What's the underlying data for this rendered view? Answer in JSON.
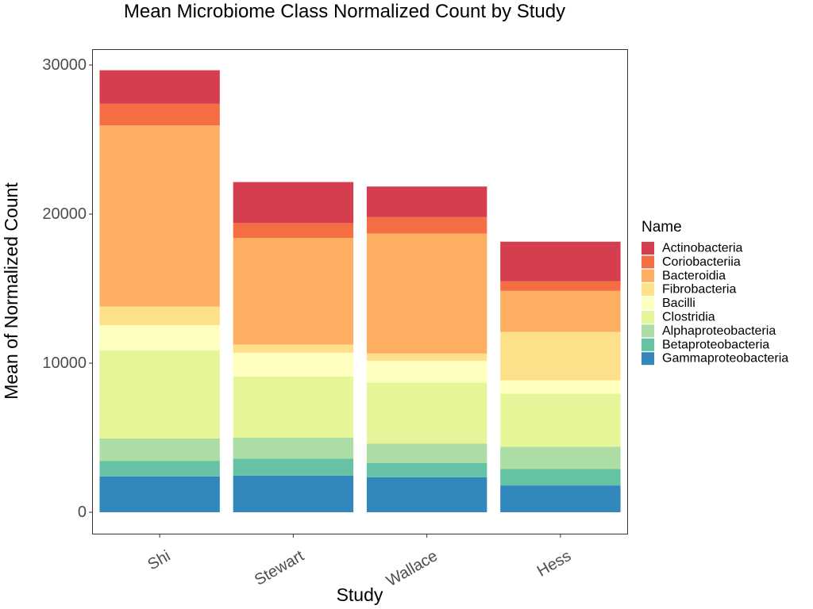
{
  "chart_data": {
    "type": "bar",
    "stacked": true,
    "title": "Mean Microbiome Class Normalized Count by Study",
    "xlabel": "Study",
    "ylabel": "Mean of Normalized Count",
    "categories": [
      "Shi",
      "Stewart",
      "Wallace",
      "Hess"
    ],
    "ylim": [
      0,
      30000
    ],
    "yticks": [
      0,
      10000,
      20000,
      30000
    ],
    "grid": false,
    "legend": {
      "title": "Name",
      "position": "right"
    },
    "series": [
      {
        "name": "Gammaproteobacteria",
        "color": "#3288bd",
        "values": [
          2400,
          2450,
          2350,
          1800
        ]
      },
      {
        "name": "Betaproteobacteria",
        "color": "#66c2a5",
        "values": [
          1050,
          1150,
          950,
          1100
        ]
      },
      {
        "name": "Alphaproteobacteria",
        "color": "#abdda4",
        "values": [
          1500,
          1400,
          1300,
          1500
        ]
      },
      {
        "name": "Clostridia",
        "color": "#e6f598",
        "values": [
          5900,
          4100,
          4100,
          3550
        ]
      },
      {
        "name": "Bacilli",
        "color": "#ffffbf",
        "values": [
          1700,
          1600,
          1450,
          900
        ]
      },
      {
        "name": "Fibrobacteria",
        "color": "#fee08b",
        "values": [
          1250,
          550,
          500,
          3250
        ]
      },
      {
        "name": "Bacteroidia",
        "color": "#fdae61",
        "values": [
          12150,
          7150,
          8050,
          2750
        ]
      },
      {
        "name": "Coriobacteriia",
        "color": "#f46d43",
        "values": [
          1450,
          1000,
          1100,
          650
        ]
      },
      {
        "name": "Actinobacteria",
        "color": "#d53e4f",
        "values": [
          2250,
          2750,
          2050,
          2650
        ]
      }
    ],
    "legend_order": [
      "Actinobacteria",
      "Coriobacteriia",
      "Bacteroidia",
      "Fibrobacteria",
      "Bacilli",
      "Clostridia",
      "Alphaproteobacteria",
      "Betaproteobacteria",
      "Gammaproteobacteria"
    ]
  }
}
